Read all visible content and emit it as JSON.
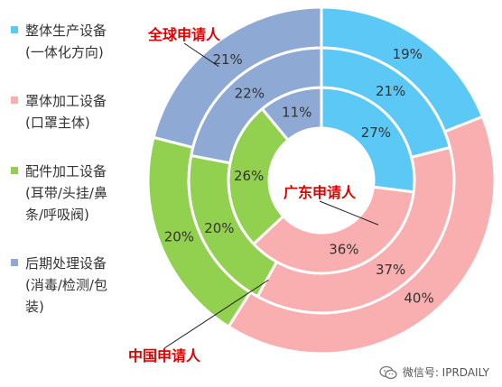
{
  "chart_data": {
    "type": "pie",
    "subtype": "nested-donut",
    "categories": [
      "整体生产设备\n(一体化方向)",
      "罩体加工设备\n(口罩主体)",
      "配件加工设备\n(耳带/头挂/鼻\n条/呼吸阀)",
      "后期处理设备\n(消毒/检测/包\n装)"
    ],
    "colors": [
      "#5bc8f5",
      "#f9aeb0",
      "#92d050",
      "#8eaad4"
    ],
    "series": [
      {
        "name": "广东申请人",
        "ring": "inner",
        "values": [
          27,
          36,
          26,
          11
        ]
      },
      {
        "name": "中国申请人",
        "ring": "middle",
        "values": [
          21,
          37,
          20,
          22
        ]
      },
      {
        "name": "全球申请人",
        "ring": "outer",
        "values": [
          19,
          40,
          20,
          21
        ]
      }
    ],
    "labels": [
      "27%",
      "36%",
      "26%",
      "11%",
      "21%",
      "37%",
      "20%",
      "22%",
      "19%",
      "40%",
      "20%",
      "21%"
    ],
    "legend_position": "left"
  },
  "watermark": "微信号: IPRDAILY"
}
